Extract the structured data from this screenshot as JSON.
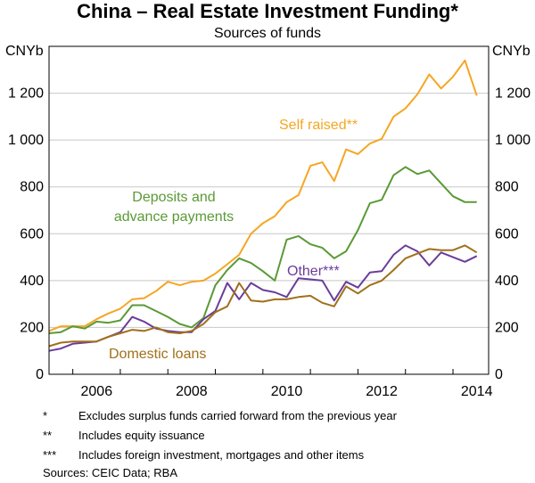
{
  "title": "China – Real Estate Investment Funding*",
  "subtitle": "Sources of funds",
  "unit_left": "CNYb",
  "unit_right": "CNYb",
  "notes": [
    {
      "mark": "*",
      "text": "Excludes surplus funds carried forward from the previous year"
    },
    {
      "mark": "**",
      "text": "Includes equity issuance"
    },
    {
      "mark": "***",
      "text": "Includes foreign investment, mortgages and other items"
    }
  ],
  "sources": "Sources:   CEIC Data; RBA",
  "colors": {
    "self_raised": "#f5a623",
    "deposits": "#5a9a35",
    "other": "#6a3d9a",
    "domestic_loans": "#a0701a",
    "axis": "#000000",
    "grid": "#c8c8c8"
  },
  "chart_data": {
    "type": "line",
    "title": "China – Real Estate Investment Funding*",
    "subtitle": "Sources of funds",
    "ylabel": "CNYb",
    "ylim": [
      0,
      1400
    ],
    "yticks": [
      0,
      200,
      400,
      600,
      800,
      1000,
      1200
    ],
    "ytick_labels": [
      "0",
      "200",
      "400",
      "600",
      "800",
      "1 000",
      "1 200"
    ],
    "xlim": [
      2005.5,
      2014.75
    ],
    "xticks": [
      2006,
      2008,
      2010,
      2012,
      2014
    ],
    "xtick_labels": [
      "2006",
      "2008",
      "2010",
      "2012",
      "2014"
    ],
    "grid": true,
    "x": [
      2005.5,
      2005.75,
      2006.0,
      2006.25,
      2006.5,
      2006.75,
      2007.0,
      2007.25,
      2007.5,
      2007.75,
      2008.0,
      2008.25,
      2008.5,
      2008.75,
      2009.0,
      2009.25,
      2009.5,
      2009.75,
      2010.0,
      2010.25,
      2010.5,
      2010.75,
      2011.0,
      2011.25,
      2011.5,
      2011.75,
      2012.0,
      2012.25,
      2012.5,
      2012.75,
      2013.0,
      2013.25,
      2013.5,
      2013.75,
      2014.0,
      2014.25,
      2014.5
    ],
    "series": [
      {
        "name": "Self raised**",
        "key": "self_raised",
        "values": [
          185,
          205,
          205,
          205,
          235,
          260,
          280,
          320,
          325,
          355,
          395,
          380,
          395,
          400,
          430,
          470,
          510,
          600,
          645,
          675,
          735,
          765,
          890,
          905,
          825,
          960,
          940,
          985,
          1005,
          1100,
          1135,
          1195,
          1280,
          1220,
          1270,
          1340,
          1190
        ]
      },
      {
        "name": "Deposits and advance payments",
        "key": "deposits",
        "values": [
          175,
          180,
          205,
          195,
          225,
          220,
          230,
          295,
          295,
          270,
          245,
          215,
          200,
          240,
          380,
          445,
          495,
          475,
          440,
          400,
          575,
          590,
          555,
          540,
          495,
          525,
          615,
          730,
          745,
          850,
          885,
          855,
          870,
          815,
          760,
          735,
          735
        ]
      },
      {
        "name": "Other***",
        "key": "other",
        "values": [
          100,
          110,
          130,
          135,
          140,
          160,
          180,
          245,
          225,
          195,
          185,
          180,
          180,
          235,
          270,
          390,
          320,
          390,
          360,
          350,
          330,
          410,
          405,
          400,
          315,
          395,
          370,
          435,
          440,
          510,
          550,
          525,
          465,
          520,
          500,
          480,
          505
        ]
      },
      {
        "name": "Domestic loans",
        "key": "domestic_loans",
        "values": [
          120,
          135,
          140,
          140,
          140,
          160,
          175,
          190,
          185,
          200,
          180,
          175,
          185,
          215,
          265,
          290,
          390,
          315,
          310,
          320,
          320,
          330,
          335,
          305,
          290,
          375,
          345,
          380,
          400,
          445,
          495,
          515,
          535,
          530,
          530,
          550,
          520
        ]
      }
    ],
    "labels": [
      {
        "key": "self_raised",
        "text": "Self raised**"
      },
      {
        "key": "deposits",
        "lines": [
          "Deposits and",
          "advance payments"
        ]
      },
      {
        "key": "other",
        "text": "Other***"
      },
      {
        "key": "domestic_loans",
        "text": "Domestic loans"
      }
    ]
  }
}
